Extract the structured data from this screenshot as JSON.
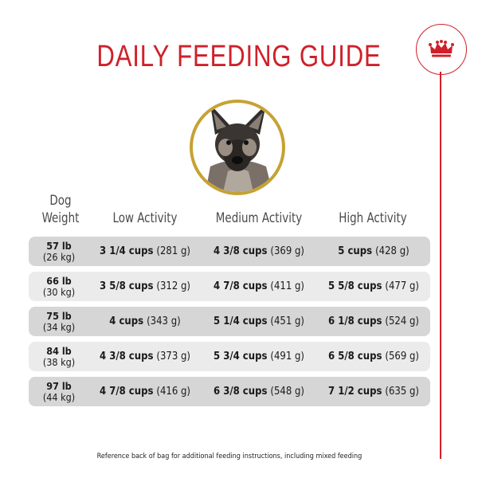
{
  "title": "DAILY FEEDING GUIDE",
  "headers": {
    "weight_line1": "Dog",
    "weight_line2": "Weight",
    "low": "Low Activity",
    "medium": "Medium Activity",
    "high": "High Activity"
  },
  "rows": [
    {
      "lb": "57 lb",
      "kg": "(26 kg)",
      "low_cups": "3 1/4 cups",
      "low_g": "(281 g)",
      "med_cups": "4 3/8 cups",
      "med_g": "(369 g)",
      "high_cups": "5 cups",
      "high_g": "(428 g)"
    },
    {
      "lb": "66 lb",
      "kg": "(30 kg)",
      "low_cups": "3 5/8 cups",
      "low_g": "(312 g)",
      "med_cups": "4 7/8 cups",
      "med_g": "(411 g)",
      "high_cups": "5 5/8 cups",
      "high_g": "(477 g)"
    },
    {
      "lb": "75 lb",
      "kg": "(34 kg)",
      "low_cups": "4 cups",
      "low_g": "(343 g)",
      "med_cups": "5 1/4 cups",
      "med_g": "(451 g)",
      "high_cups": "6 1/8 cups",
      "high_g": "(524 g)"
    },
    {
      "lb": "84 lb",
      "kg": "(38 kg)",
      "low_cups": "4 3/8 cups",
      "low_g": "(373 g)",
      "med_cups": "5 3/4 cups",
      "med_g": "(491 g)",
      "high_cups": "6 5/8 cups",
      "high_g": "(569 g)"
    },
    {
      "lb": "97 lb",
      "kg": "(44 kg)",
      "low_cups": "4 7/8 cups",
      "low_g": "(416 g)",
      "med_cups": "6 3/8 cups",
      "med_g": "(548 g)",
      "high_cups": "7 1/2 cups",
      "high_g": "(635 g)"
    }
  ],
  "footnote": "Reference back of bag for additional feeding instructions, including mixed feeding",
  "colors": {
    "brand_red": "#d0202a",
    "gold_ring": "#c6a233",
    "row_dark": "#d6d6d6",
    "row_light": "#ebebeb"
  },
  "icons": {
    "logo": "crown-icon",
    "photo": "dog-portrait"
  }
}
